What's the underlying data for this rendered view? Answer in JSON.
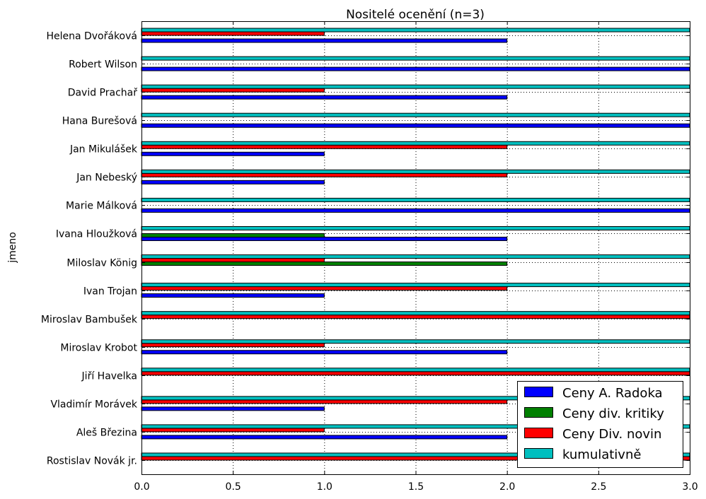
{
  "chart_data": {
    "type": "bar",
    "orientation": "horizontal",
    "title": "Nositelé ocenění (n=3)",
    "xlabel": "",
    "ylabel": "jmeno",
    "xlim": [
      0,
      3
    ],
    "xticks": [
      "0.0",
      "0.5",
      "1.0",
      "1.5",
      "2.0",
      "2.5",
      "3.0"
    ],
    "grid": true,
    "legend_position": "bottom-right",
    "categories": [
      "Rostislav Novák jr.",
      "Aleš Březina",
      "Vladimír Morávek",
      "Jiří Havelka",
      "Miroslav Krobot",
      "Miroslav Bambušek",
      "Ivan Trojan",
      "Miloslav König",
      "Ivana Hloužková",
      "Marie Málková",
      "Jan Nebeský",
      "Jan Mikulášek",
      "Hana Burešová",
      "David Prachař",
      "Robert Wilson",
      "Helena Dvořáková"
    ],
    "series": [
      {
        "name": "Ceny A. Radoka",
        "color": "#0000ff",
        "values": [
          0,
          2,
          1,
          0,
          2,
          0,
          1,
          0,
          2,
          3,
          1,
          1,
          3,
          2,
          3,
          2
        ]
      },
      {
        "name": "Ceny div. kritiky",
        "color": "#008000",
        "values": [
          0,
          0,
          0,
          0,
          0,
          0,
          0,
          2,
          1,
          0,
          0,
          0,
          0,
          0,
          0,
          0
        ]
      },
      {
        "name": "Ceny Div. novin",
        "color": "#ff0000",
        "values": [
          3,
          1,
          2,
          3,
          1,
          3,
          2,
          1,
          0,
          0,
          2,
          2,
          0,
          1,
          0,
          1
        ]
      },
      {
        "name": "kumulativně",
        "color": "#00bfbf",
        "values": [
          3,
          3,
          3,
          3,
          3,
          3,
          3,
          3,
          3,
          3,
          3,
          3,
          3,
          3,
          3,
          3
        ]
      }
    ]
  }
}
